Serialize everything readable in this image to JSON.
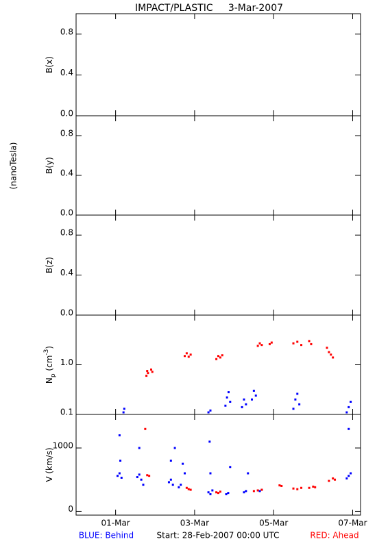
{
  "title": "IMPACT/PLASTIC     3-Mar-2007",
  "unit_label": "(nanoTesla)",
  "footer": {
    "start": "Start: 28-Feb-2007 00:00 UTC"
  },
  "chart_data": [
    {
      "type": "scatter",
      "ylabel": [
        "B(x)"
      ],
      "ylim": [
        0,
        1
      ],
      "yticks": [
        {
          "value": 0,
          "label": "0.0"
        },
        0.4,
        0.8
      ],
      "series": []
    },
    {
      "type": "scatter",
      "ylabel": [
        "B(y)"
      ],
      "ylim": [
        0,
        1
      ],
      "yticks": [
        {
          "value": 0,
          "label": "0.0"
        },
        0.4,
        0.8
      ],
      "series": []
    },
    {
      "type": "scatter",
      "ylabel": [
        "B(z)"
      ],
      "ylim": [
        0,
        1
      ],
      "yticks": [
        {
          "value": 0,
          "label": "0.0"
        },
        0.4,
        0.8
      ],
      "series": []
    },
    {
      "type": "scatter",
      "log": true,
      "ylabel": [
        "N",
        "p",
        " (cm",
        "-3",
        ")"
      ],
      "ylim": [
        0.1,
        10
      ],
      "yticks": [
        0.1,
        {
          "value": 1,
          "label": "1.0"
        }
      ],
      "series": [
        {
          "color": "#0000ff",
          "x": [
            1.2,
            1.22,
            3.35,
            3.4,
            3.78,
            3.82,
            3.86,
            3.9,
            4.2,
            4.25,
            4.3,
            4.45,
            4.5,
            4.55,
            5.5,
            5.55,
            5.6,
            5.65,
            6.85,
            6.9,
            6.95
          ],
          "values": [
            0.11,
            0.13,
            0.11,
            0.12,
            0.15,
            0.22,
            0.28,
            0.18,
            0.14,
            0.2,
            0.16,
            0.2,
            0.3,
            0.24,
            0.13,
            0.2,
            0.26,
            0.16,
            0.11,
            0.14,
            0.18
          ]
        },
        {
          "color": "#ff0000",
          "x": [
            1.78,
            1.8,
            1.82,
            1.9,
            1.93,
            2.75,
            2.8,
            2.85,
            2.9,
            3.55,
            3.6,
            3.65,
            3.7,
            4.6,
            4.65,
            4.7,
            4.9,
            4.95,
            5.5,
            5.6,
            5.7,
            5.9,
            5.95,
            6.35,
            6.4,
            6.45,
            6.5
          ],
          "values": [
            0.6,
            0.75,
            0.68,
            0.8,
            0.72,
            1.5,
            1.7,
            1.45,
            1.6,
            1.3,
            1.5,
            1.4,
            1.55,
            2.4,
            2.7,
            2.5,
            2.6,
            2.8,
            2.7,
            2.9,
            2.5,
            3.0,
            2.6,
            2.2,
            1.8,
            1.6,
            1.4
          ]
        }
      ]
    },
    {
      "type": "scatter",
      "ylabel": [
        "V (km/s)"
      ],
      "ylim": [
        -60,
        1530
      ],
      "yticks": [
        0,
        1000
      ],
      "xlim": [
        0,
        7.2
      ],
      "xticks": [
        {
          "value": 1,
          "label": "01-Mar"
        },
        {
          "value": 3,
          "label": "03-Mar"
        },
        {
          "value": 5,
          "label": "05-Mar"
        },
        {
          "value": 7,
          "label": "07-Mar"
        }
      ],
      "series": [
        {
          "name": "BLUE: Behind",
          "color": "#0000ff",
          "x": [
            1.05,
            1.1,
            1.15,
            1.1,
            1.12,
            1.55,
            1.6,
            1.65,
            1.6,
            1.7,
            2.35,
            2.4,
            2.45,
            2.4,
            2.5,
            2.6,
            2.65,
            2.7,
            2.75,
            3.35,
            3.4,
            3.45,
            3.4,
            3.38,
            3.8,
            3.85,
            3.9,
            4.25,
            4.3,
            4.35,
            4.65,
            4.7,
            6.85,
            6.9,
            6.95,
            6.9
          ],
          "values": [
            560,
            600,
            530,
            1200,
            800,
            540,
            580,
            500,
            1000,
            420,
            460,
            500,
            420,
            800,
            1000,
            380,
            420,
            750,
            600,
            300,
            270,
            330,
            600,
            1100,
            270,
            290,
            700,
            300,
            320,
            600,
            320,
            340,
            520,
            560,
            600,
            1300
          ]
        },
        {
          "name": "RED: Ahead",
          "color": "#ff0000",
          "x": [
            1.8,
            1.85,
            1.75,
            2.8,
            2.85,
            2.9,
            3.55,
            3.6,
            3.65,
            4.5,
            4.6,
            4.7,
            5.15,
            5.2,
            5.5,
            5.6,
            5.7,
            5.9,
            6.0,
            6.05,
            6.4,
            6.5,
            6.55
          ],
          "values": [
            570,
            560,
            1300,
            370,
            350,
            340,
            300,
            290,
            310,
            320,
            330,
            340,
            410,
            400,
            360,
            350,
            370,
            370,
            390,
            380,
            480,
            520,
            500
          ]
        }
      ]
    }
  ]
}
